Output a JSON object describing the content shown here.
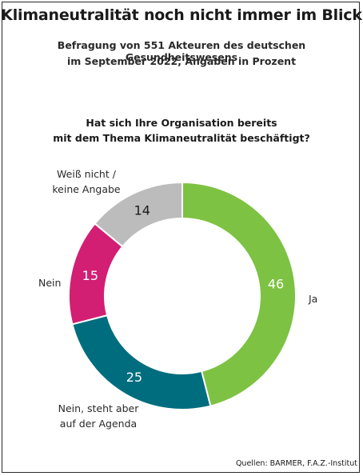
{
  "title": "Klimaneutralität noch nicht immer im Blick",
  "subtitle_line1": "Befragung von 551 Akteuren des deutschen Gesundheitswesens",
  "subtitle_line2": "im September 2022, Angaben in Prozent",
  "question_line1": "Hat sich Ihre Organisation bereits",
  "question_line2": "mit dem Thema Klimaneutralität beschäftigt?",
  "source": "Quellen: BARMER, F.A.Z.-Institut",
  "chart_data": {
    "type": "pie",
    "variant": "donut",
    "start": "12 o'clock, clockwise",
    "slices": [
      {
        "label": "Ja",
        "value": 46,
        "color": "#7dc242",
        "text_color": "#ffffff"
      },
      {
        "label_lines": [
          "Nein, steht aber",
          "auf der Agenda"
        ],
        "value": 25,
        "color": "#006d7e",
        "text_color": "#ffffff"
      },
      {
        "label": "Nein",
        "value": 15,
        "color": "#d21f73",
        "text_color": "#ffffff"
      },
      {
        "label_lines": [
          "Weiß nicht /",
          "keine Angabe"
        ],
        "value": 14,
        "color": "#bcbcbc",
        "text_color": "#1a1a1a"
      }
    ]
  }
}
